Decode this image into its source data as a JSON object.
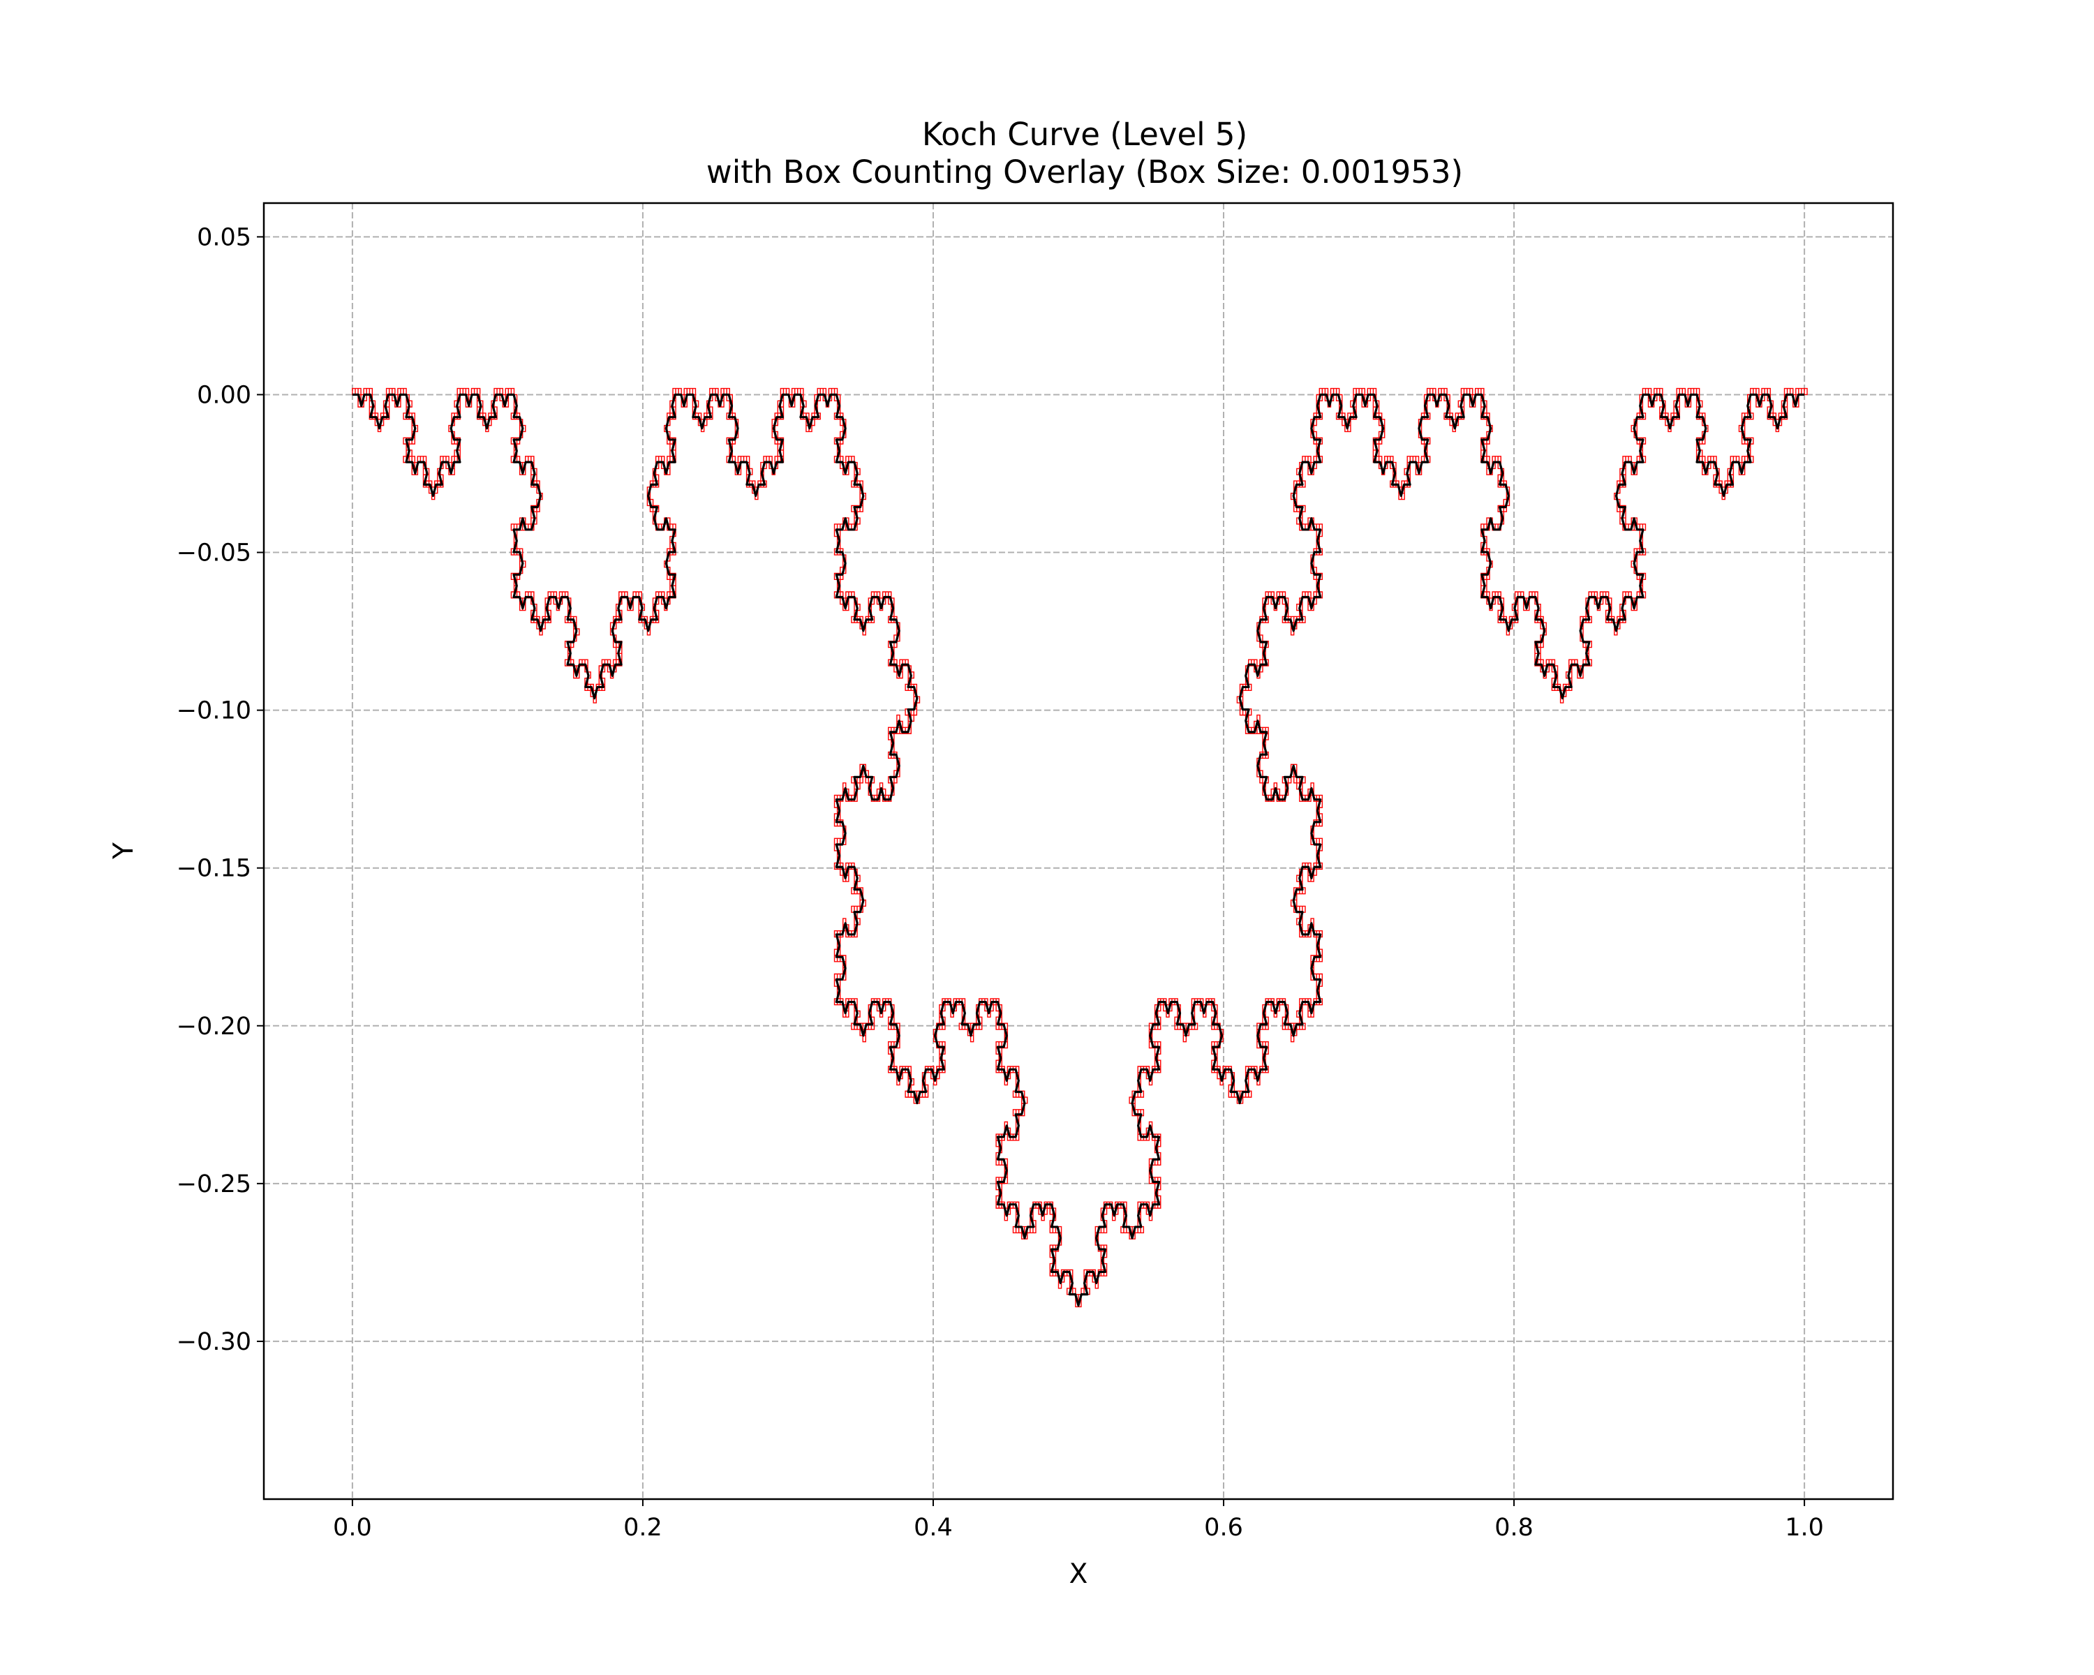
{
  "chart_data": {
    "type": "line",
    "title": "Koch Curve (Level 5)",
    "subtitle": "with Box Counting Overlay (Box Size: 0.001953)",
    "xlabel": "X",
    "ylabel": "Y",
    "xlim": [
      -0.061,
      1.061
    ],
    "ylim": [
      -0.35,
      0.0607
    ],
    "xticks": [
      {
        "value": 0.0,
        "label": "0.0"
      },
      {
        "value": 0.2,
        "label": "0.2"
      },
      {
        "value": 0.4,
        "label": "0.4"
      },
      {
        "value": 0.6,
        "label": "0.6"
      },
      {
        "value": 0.8,
        "label": "0.8"
      },
      {
        "value": 1.0,
        "label": "1.0"
      }
    ],
    "yticks": [
      {
        "value": 0.05,
        "label": "0.05"
      },
      {
        "value": 0.0,
        "label": "0.00"
      },
      {
        "value": -0.05,
        "label": "−0.05"
      },
      {
        "value": -0.1,
        "label": "−0.10"
      },
      {
        "value": -0.15,
        "label": "−0.15"
      },
      {
        "value": -0.2,
        "label": "−0.20"
      },
      {
        "value": -0.25,
        "label": "−0.25"
      },
      {
        "value": -0.3,
        "label": "−0.30"
      }
    ],
    "grid": true,
    "grid_style": "dashed",
    "curve": {
      "kind": "koch",
      "level": 5,
      "start": [
        0.0,
        0.0
      ],
      "end": [
        1.0,
        0.0
      ],
      "orientation": "downward",
      "color": "#000000"
    },
    "box_overlay": {
      "box_size": 0.001953,
      "edge_color": "#ff0000"
    },
    "colors": {
      "grid": "#b0b0b0",
      "axes": "#000000",
      "background": "#ffffff"
    }
  }
}
